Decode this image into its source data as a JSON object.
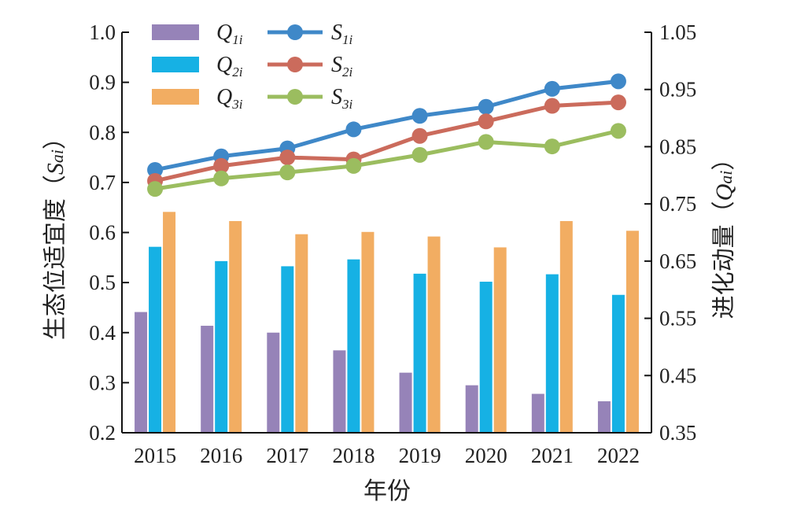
{
  "chart_data": {
    "type": "bar+line",
    "categories": [
      "2015",
      "2016",
      "2017",
      "2018",
      "2019",
      "2020",
      "2021",
      "2022"
    ],
    "xlabel": "年份",
    "y_left": {
      "label_parts": [
        "生态位适宜度（",
        "S",
        "ai",
        "）"
      ],
      "range": [
        0.2,
        1.0
      ],
      "ticks": [
        "0.2",
        "0.3",
        "0.4",
        "0.5",
        "0.6",
        "0.7",
        "0.8",
        "0.9",
        "1.0"
      ]
    },
    "y_right": {
      "label_parts": [
        "进化动量（",
        "Q",
        "ai",
        "）"
      ],
      "range": [
        0.35,
        1.05
      ],
      "ticks": [
        "0.35",
        "0.45",
        "0.55",
        "0.65",
        "0.75",
        "0.85",
        "0.95",
        "1.05"
      ]
    },
    "bar_series": [
      {
        "name": "Q1i",
        "label_main": "Q",
        "label_sub": "1i",
        "color": "#9683b8",
        "axis": "right",
        "values": [
          0.561,
          0.537,
          0.525,
          0.494,
          0.455,
          0.433,
          0.418,
          0.405
        ]
      },
      {
        "name": "Q2i",
        "label_main": "Q",
        "label_sub": "2i",
        "color": "#16b1e4",
        "axis": "right",
        "values": [
          0.675,
          0.65,
          0.641,
          0.653,
          0.628,
          0.614,
          0.627,
          0.591
        ]
      },
      {
        "name": "Q3i",
        "label_main": "Q",
        "label_sub": "3i",
        "color": "#f2ad62",
        "axis": "right",
        "values": [
          0.736,
          0.72,
          0.697,
          0.701,
          0.693,
          0.674,
          0.72,
          0.703
        ]
      }
    ],
    "line_series": [
      {
        "name": "S1i",
        "label_main": "S",
        "label_sub": "1i",
        "color": "#3f88c8",
        "axis": "left",
        "values": [
          0.725,
          0.752,
          0.768,
          0.806,
          0.833,
          0.851,
          0.887,
          0.902
        ]
      },
      {
        "name": "S2i",
        "label_main": "S",
        "label_sub": "2i",
        "color": "#cb6b5c",
        "axis": "left",
        "values": [
          0.703,
          0.733,
          0.75,
          0.746,
          0.793,
          0.822,
          0.853,
          0.86
        ]
      },
      {
        "name": "S3i",
        "label_main": "S",
        "label_sub": "3i",
        "color": "#9bbd5f",
        "axis": "left",
        "values": [
          0.687,
          0.708,
          0.72,
          0.733,
          0.755,
          0.781,
          0.772,
          0.803
        ]
      }
    ],
    "legend_position": "top-left"
  }
}
